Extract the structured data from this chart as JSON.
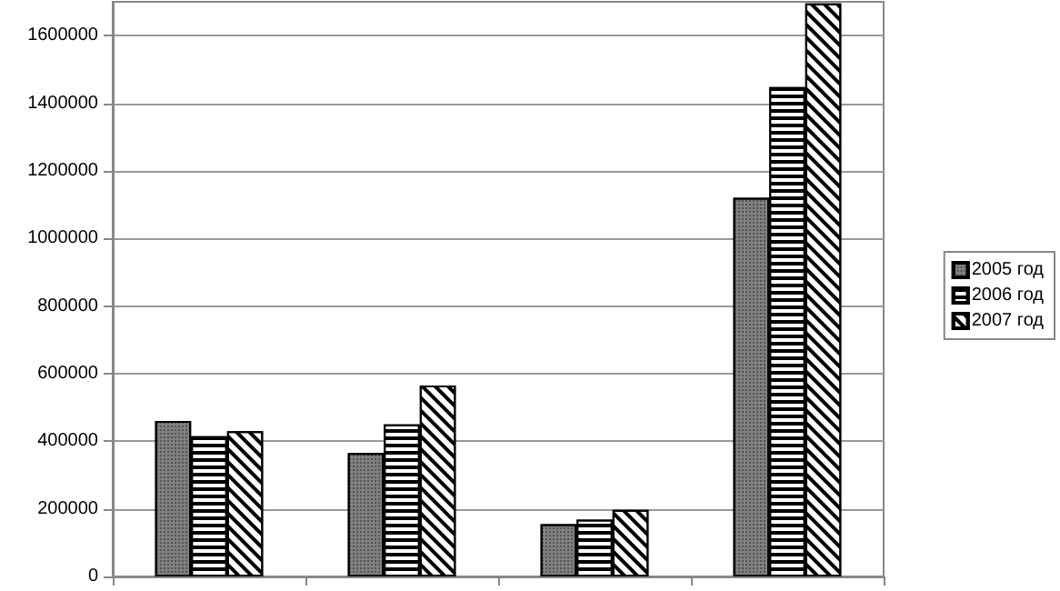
{
  "chart_data": {
    "type": "bar",
    "categories": [
      null,
      null,
      null,
      null
    ],
    "series": [
      {
        "name": "2005 год",
        "color": "#808080",
        "values": [
          460000,
          365000,
          155000,
          1120000
        ]
      },
      {
        "name": "2006 год",
        "color": "#ffffff",
        "values": [
          415000,
          450000,
          168000,
          1448000
        ]
      },
      {
        "name": "2007 год",
        "color": "#ffffff",
        "values": [
          430000,
          565000,
          197000,
          1695000
        ]
      }
    ],
    "ylim": [
      0,
      1700000
    ],
    "yticks": [
      0,
      200000,
      400000,
      600000,
      800000,
      1000000,
      1200000,
      1400000,
      1600000
    ],
    "grid": "y",
    "legend": "right"
  }
}
